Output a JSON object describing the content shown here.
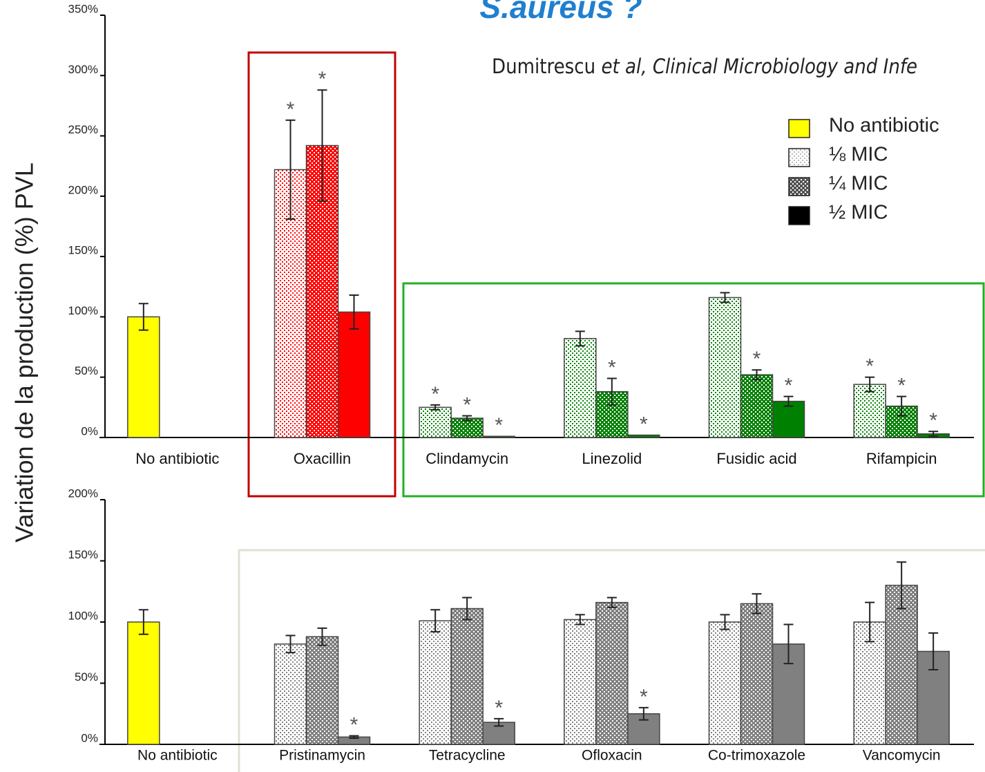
{
  "title": "S.aureus ?",
  "citation": {
    "author": "Dumitrescu ",
    "etal": "et al",
    "journal": ", Clinical Microbiology and Infe"
  },
  "y_label": "Variation de la production (%) PVL",
  "chart_data": [
    {
      "type": "bar",
      "categories": [
        "No antibiotic",
        "Oxacillin",
        "Clindamycin",
        "Linezolid",
        "Fusidic acid",
        "Rifampicin"
      ],
      "category_colors": [
        "#ffff00",
        "#ff0000",
        "#008000",
        "#008000",
        "#008000",
        "#008000"
      ],
      "ylim": [
        0,
        350
      ],
      "yticks": [
        {
          "value": 0,
          "label": "0%"
        },
        {
          "value": 50,
          "label": "50%"
        },
        {
          "value": 100,
          "label": "100%"
        },
        {
          "value": 150,
          "label": "150%"
        },
        {
          "value": 200,
          "label": "200%"
        },
        {
          "value": 250,
          "label": "250%"
        },
        {
          "value": 300,
          "label": "300%"
        },
        {
          "value": 350,
          "label": "350%"
        }
      ],
      "legend": "top-right",
      "series": [
        {
          "name": "No antibiotic",
          "color": "#ffff00",
          "pattern": "solid",
          "values": [
            100,
            null,
            null,
            null,
            null,
            null
          ],
          "errors": [
            11,
            null,
            null,
            null,
            null,
            null
          ]
        },
        {
          "name": "⅛ MIC",
          "color": "#bbbbbb",
          "pattern": "sparse",
          "values": [
            null,
            222,
            25,
            82,
            116,
            44
          ],
          "errors": [
            null,
            41,
            2,
            6,
            4,
            6
          ],
          "stars": [
            null,
            "*",
            "*",
            null,
            null,
            "*"
          ]
        },
        {
          "name": "¼ MIC",
          "color": "#555555",
          "pattern": "dense",
          "values": [
            null,
            242,
            16,
            38,
            52,
            26
          ],
          "errors": [
            null,
            46,
            2,
            11,
            4,
            8
          ],
          "stars": [
            null,
            "*",
            "*",
            "*",
            "*",
            "*"
          ]
        },
        {
          "name": "½ MIC",
          "color": "#000000",
          "pattern": "solid",
          "values": [
            null,
            104,
            1,
            2,
            30,
            3
          ],
          "errors": [
            null,
            14,
            null,
            null,
            4,
            2
          ],
          "stars": [
            null,
            null,
            "*",
            "*",
            "*",
            "*"
          ]
        }
      ]
    },
    {
      "type": "bar",
      "categories": [
        "No antibiotic",
        "Pristinamycin",
        "Tetracycline",
        "Ofloxacin",
        "Co-trimoxazole",
        "Vancomycin"
      ],
      "category_colors": [
        "#ffff00",
        "#808080",
        "#808080",
        "#808080",
        "#808080",
        "#808080"
      ],
      "ylim": [
        0,
        200
      ],
      "yticks": [
        {
          "value": 0,
          "label": "0%"
        },
        {
          "value": 50,
          "label": "50%"
        },
        {
          "value": 100,
          "label": "100%"
        },
        {
          "value": 150,
          "label": "150%"
        },
        {
          "value": 200,
          "label": "200%"
        }
      ],
      "series": [
        {
          "pattern": "solid",
          "values": [
            100,
            null,
            null,
            null,
            null,
            null
          ],
          "errors": [
            10,
            null,
            null,
            null,
            null,
            null
          ]
        },
        {
          "pattern": "sparse",
          "values": [
            null,
            82,
            101,
            102,
            100,
            100
          ],
          "errors": [
            null,
            7,
            9,
            4,
            6,
            16
          ]
        },
        {
          "pattern": "dense",
          "values": [
            null,
            88,
            111,
            116,
            115,
            130
          ],
          "errors": [
            null,
            7,
            9,
            4,
            8,
            19
          ]
        },
        {
          "pattern": "solid",
          "values": [
            null,
            6,
            18,
            25,
            82,
            76
          ],
          "errors": [
            null,
            1,
            3,
            5,
            16,
            15
          ],
          "stars": [
            null,
            "*",
            "*",
            "*",
            null,
            null
          ]
        }
      ]
    }
  ]
}
